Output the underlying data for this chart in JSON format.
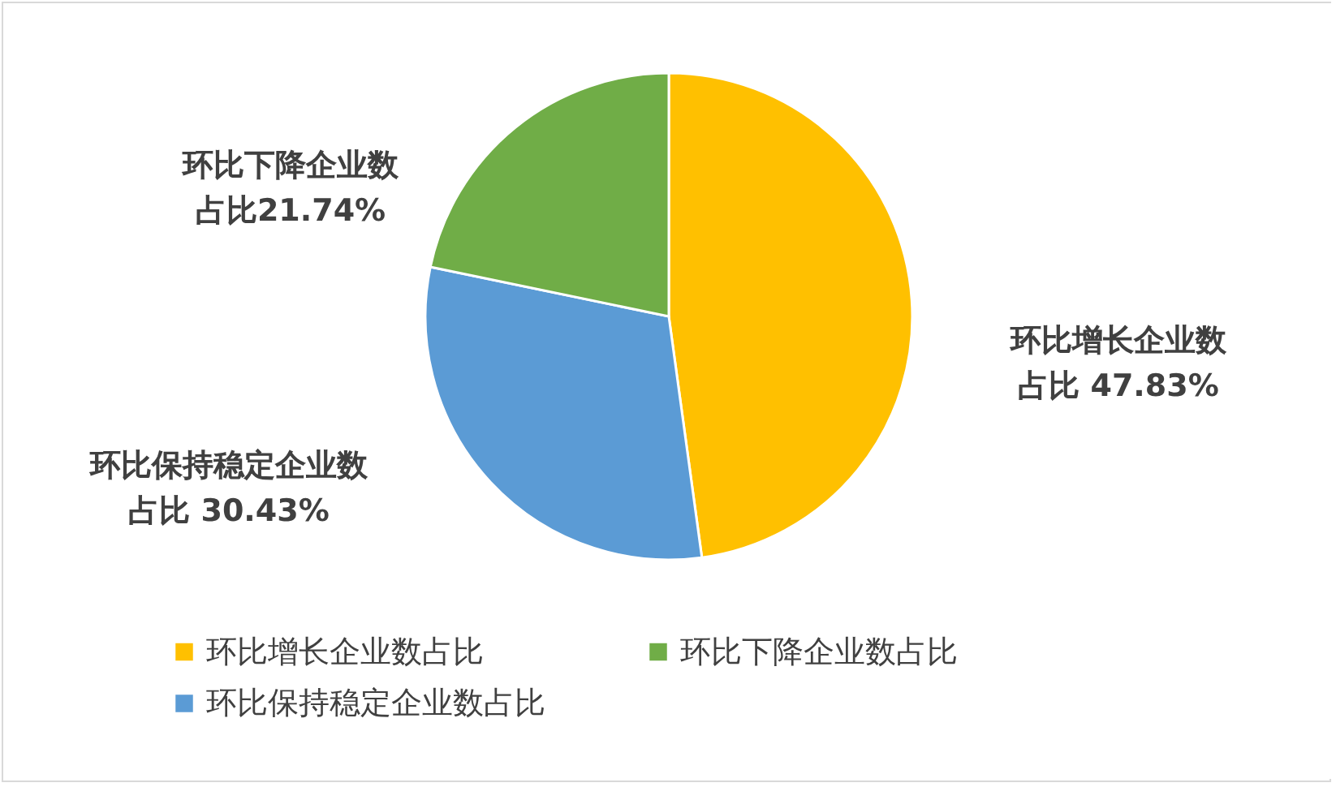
{
  "chart_data": {
    "type": "pie",
    "categories": [
      "环比增长企业数占比",
      "环比保持稳定企业数占比",
      "环比下降企业数占比"
    ],
    "values": [
      47.83,
      30.43,
      21.74
    ],
    "colors": [
      "#ffc000",
      "#5b9bd5",
      "#70ad47"
    ],
    "value_labels": [
      "环比增长企业数占比 47.83%",
      "环比保持稳定企业数占比 30.43%",
      "环比下降企业数占比21.74%"
    ],
    "legend": "bottom"
  }
}
